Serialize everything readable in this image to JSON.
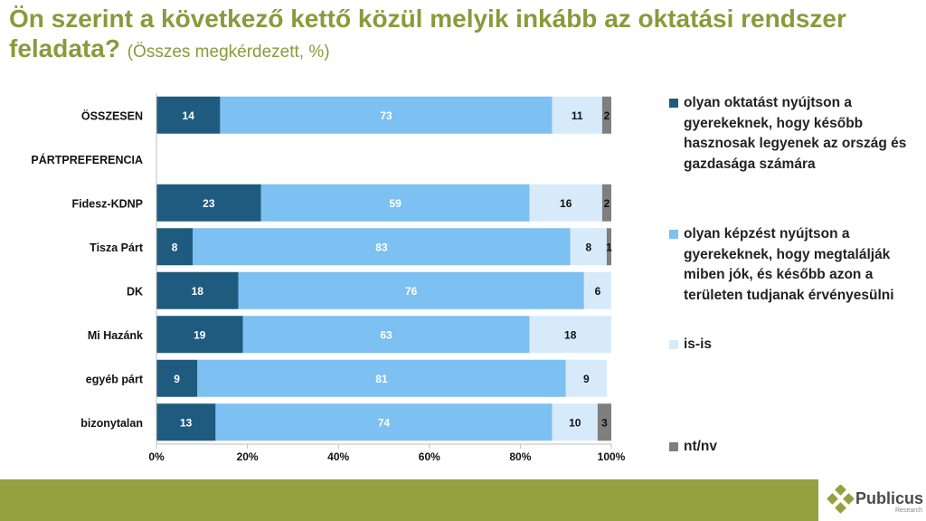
{
  "title": {
    "main": "Ön szerint a következő kettő közül melyik inkább az oktatási rendszer feladata?",
    "sub": "(Összes megkérdezett, %)"
  },
  "chart_data": {
    "type": "bar",
    "orientation": "horizontal",
    "stacked": "percent",
    "categories": [
      "ÖSSZESEN",
      "PÁRTPREFERENCIA",
      "Fidesz-KDNP",
      "Tisza Párt",
      "DK",
      "Mi Hazánk",
      "egyéb párt",
      "bizonytalan"
    ],
    "series": [
      {
        "name": "olyan oktatást nyújtson a gyerekeknek, hogy később hasznosak legyenek az ország és gazdasága számára",
        "color": "#1e5b7e",
        "values": [
          14,
          null,
          23,
          8,
          18,
          19,
          9,
          13
        ]
      },
      {
        "name": "olyan képzést nyújtson a gyerekeknek, hogy megtalálják miben jók, és később azon a területen tudjanak érvényesülni",
        "color": "#7dc0f2",
        "values": [
          73,
          null,
          59,
          83,
          76,
          63,
          81,
          74
        ]
      },
      {
        "name": "is-is",
        "color": "#d7eafa",
        "values": [
          11,
          null,
          16,
          8,
          6,
          18,
          9,
          10
        ]
      },
      {
        "name": "nt/nv",
        "color": "#7f7f7f",
        "values": [
          2,
          null,
          2,
          1,
          null,
          null,
          null,
          3
        ]
      }
    ],
    "x_ticks": [
      "0%",
      "20%",
      "40%",
      "60%",
      "80%",
      "100%"
    ],
    "xlim": [
      0,
      100
    ],
    "legend_position": "right",
    "grid": false
  },
  "legend": {
    "items": [
      {
        "label": "olyan oktatást nyújtson a gyerekeknek, hogy később hasznosak legyenek az ország és gazdasága számára",
        "color": "#1e5b7e"
      },
      {
        "label": "olyan képzést nyújtson a gyerekeknek, hogy megtalálják miben jók, és később azon a területen tudjanak érvényesülni",
        "color": "#7dc0f2"
      },
      {
        "label": "is-is",
        "color": "#d7eafa"
      },
      {
        "label": "nt/nv",
        "color": "#7f7f7f"
      }
    ]
  },
  "footer": {
    "logo_name": "Publicus",
    "logo_sub": "Research",
    "logo_icon": "diamond-cluster-icon",
    "band_color": "#93a13f"
  }
}
